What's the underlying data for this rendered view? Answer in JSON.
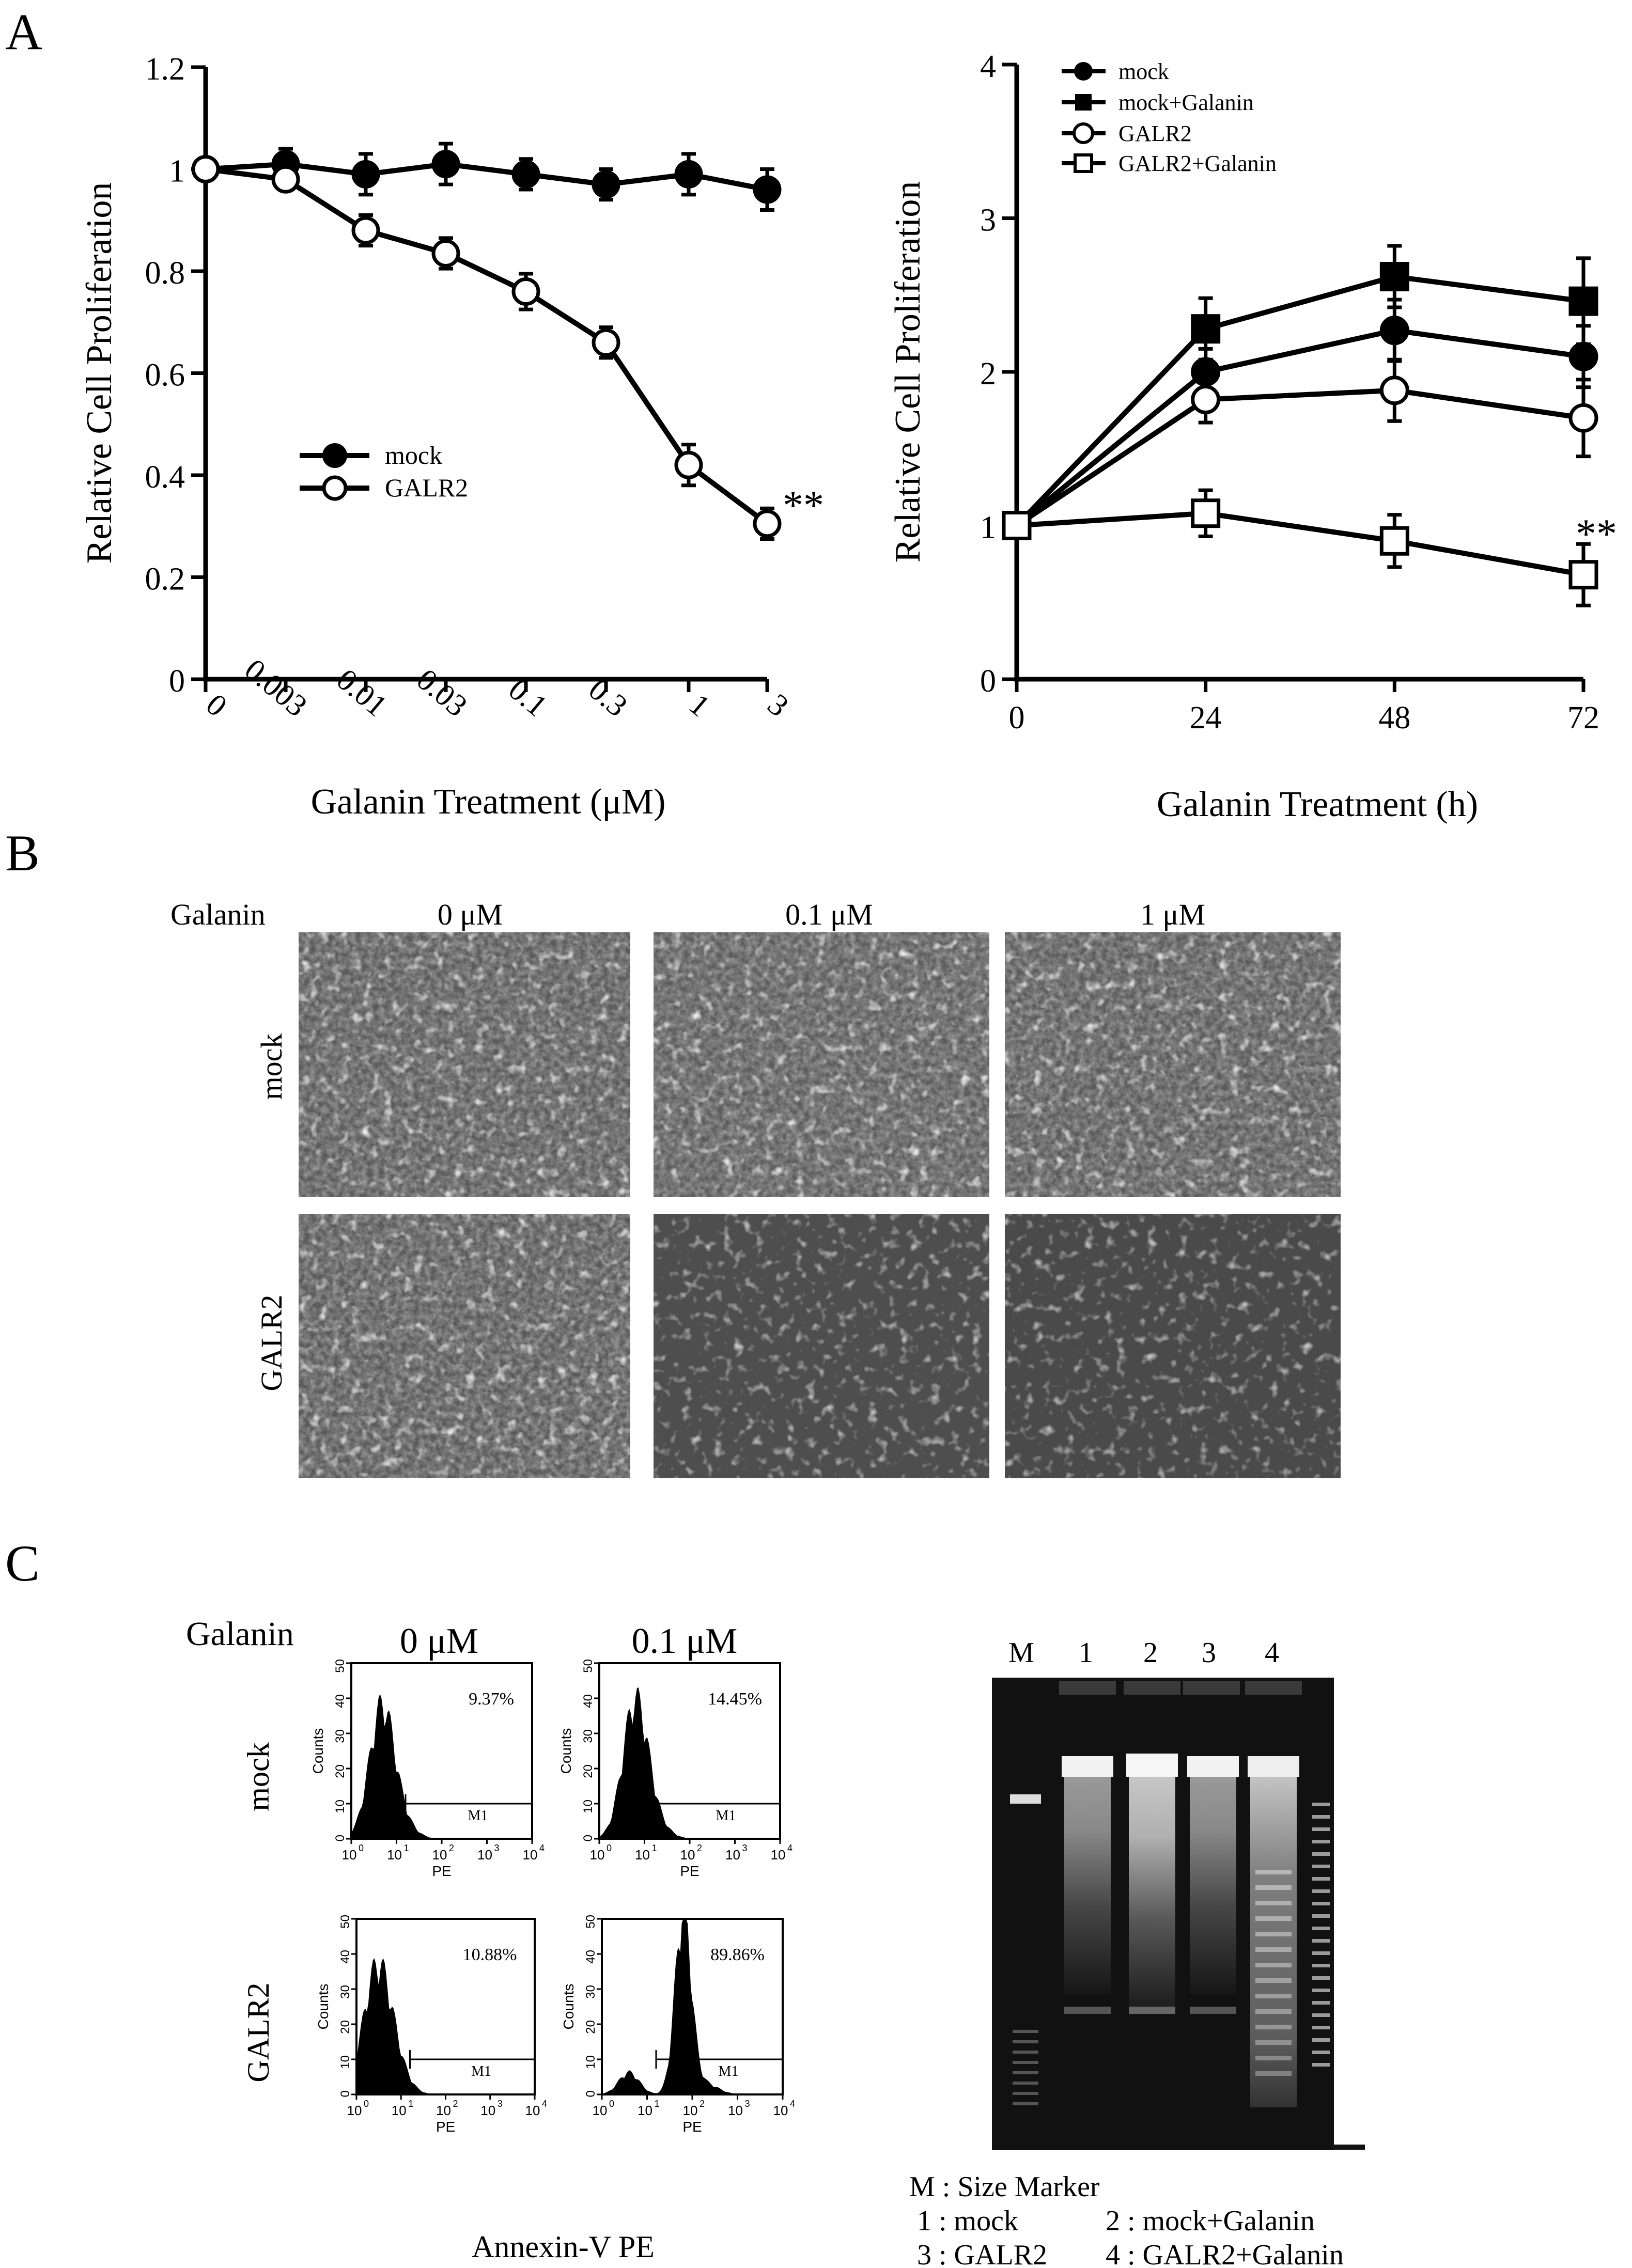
{
  "panels": {
    "a": "A",
    "b": "B",
    "c": "C"
  },
  "colors": {
    "ink": "#000000",
    "photo_bg": "#5a5a5a",
    "gel_bg": "#111111"
  },
  "chart_data": [
    {
      "type": "line",
      "panel": "A-left",
      "xlabel": "Galanin Treatment (μM)",
      "ylabel": "Relative Cell Proliferation",
      "categories": [
        "0",
        "0.003",
        "0.01",
        "0.03",
        "0.1",
        "0.3",
        "1",
        "3"
      ],
      "ylim": [
        0,
        1.2
      ],
      "yticks": [
        "0",
        "0.2",
        "0.4",
        "0.6",
        "0.8",
        "1",
        "1.2"
      ],
      "series": [
        {
          "name": "mock",
          "marker": "filled-circle",
          "values": [
            1.0,
            1.01,
            0.99,
            1.01,
            0.99,
            0.97,
            0.99,
            0.96
          ],
          "err": [
            0.02,
            0.03,
            0.04,
            0.04,
            0.03,
            0.03,
            0.04,
            0.04
          ]
        },
        {
          "name": "GALR2",
          "marker": "open-circle",
          "values": [
            1.0,
            0.98,
            0.88,
            0.835,
            0.76,
            0.66,
            0.42,
            0.305
          ],
          "err": [
            0.02,
            0.02,
            0.03,
            0.03,
            0.035,
            0.03,
            0.04,
            0.03
          ]
        }
      ],
      "annotation": "**",
      "legend_position": "center-left"
    },
    {
      "type": "line",
      "panel": "A-right",
      "xlabel": "Galanin Treatment (h)",
      "ylabel": "Relative Cell Proliferation",
      "x": [
        0,
        24,
        48,
        72
      ],
      "xticks": [
        "0",
        "24",
        "48",
        "72"
      ],
      "ylim": [
        0,
        4
      ],
      "yticks": [
        "0",
        "1",
        "2",
        "3",
        "4"
      ],
      "series": [
        {
          "name": "mock",
          "marker": "filled-circle",
          "values": [
            1.0,
            2.0,
            2.27,
            2.1
          ],
          "err": [
            0,
            0.15,
            0.2,
            0.2
          ]
        },
        {
          "name": "mock+Galanin",
          "marker": "filled-square",
          "values": [
            1.0,
            2.28,
            2.62,
            2.46
          ],
          "err": [
            0,
            0.2,
            0.2,
            0.28
          ]
        },
        {
          "name": "GALR2",
          "marker": "open-circle",
          "values": [
            1.0,
            1.82,
            1.88,
            1.7
          ],
          "err": [
            0,
            0.15,
            0.2,
            0.25
          ]
        },
        {
          "name": "GALR2+Galanin",
          "marker": "open-square",
          "values": [
            1.0,
            1.08,
            0.9,
            0.68
          ],
          "err": [
            0,
            0.15,
            0.17,
            0.2
          ]
        }
      ],
      "annotation": "**",
      "legend_position": "top-left"
    },
    {
      "type": "bar",
      "panel": "C-flow",
      "xlabel": "PE",
      "ylabel": "Counts",
      "yticks": [
        "0",
        "10",
        "20",
        "30",
        "40",
        "50"
      ],
      "xticks": [
        "10",
        "10",
        "10",
        "10",
        "10"
      ],
      "xtick_exponents": [
        "0",
        "1",
        "2",
        "3",
        "4"
      ],
      "gate": "M1",
      "shared_xlabel": "Annexin-V PE",
      "cells": [
        {
          "row": "mock",
          "galanin": "0 μM",
          "percent": "9.37%"
        },
        {
          "row": "mock",
          "galanin": "0.1 μM",
          "percent": "14.45%"
        },
        {
          "row": "GALR2",
          "galanin": "0 μM",
          "percent": "10.88%"
        },
        {
          "row": "GALR2",
          "galanin": "0.1 μM",
          "percent": "89.86%"
        }
      ]
    }
  ],
  "panelB": {
    "galanin_label": "Galanin",
    "columns": [
      "0 μM",
      "0.1 μM",
      "1 μM"
    ],
    "rows": [
      "mock",
      "GALR2"
    ]
  },
  "panelC": {
    "galanin_label": "Galanin",
    "columns": [
      "0 μM",
      "0.1 μM"
    ],
    "rows": [
      "mock",
      "GALR2"
    ],
    "gel_lanes": [
      "M",
      "1",
      "2",
      "3",
      "4"
    ],
    "gel_legend": [
      "M : Size Marker",
      "1 : mock",
      "2 : mock+Galanin",
      "3 : GALR2",
      "4 : GALR2+Galanin"
    ]
  }
}
